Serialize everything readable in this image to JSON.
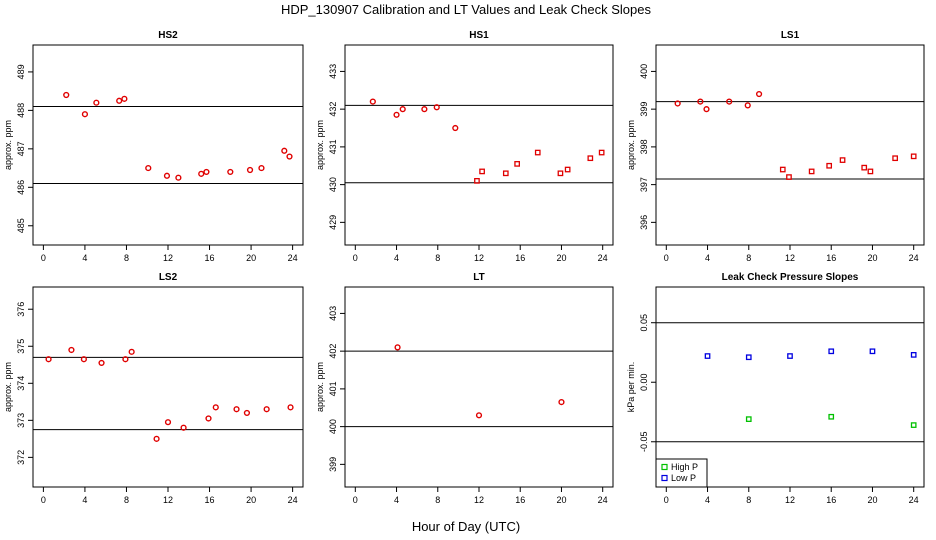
{
  "figure": {
    "title": "HDP_130907  Calibration and LT Values and Leak Check Slopes",
    "xlabel": "Hour of Day (UTC)"
  },
  "colors": {
    "red": "#e00000",
    "green": "#00c000",
    "blue": "#0000e0"
  },
  "chart_data": [
    {
      "type": "scatter",
      "title": "HS2",
      "ylabel": "approx. ppm",
      "xlim": [
        -1,
        25
      ],
      "ylim": [
        484.5,
        489.7
      ],
      "xticks": [
        0,
        4,
        8,
        12,
        16,
        20,
        24
      ],
      "yticks": [
        485,
        486,
        487,
        488,
        489
      ],
      "hlines": [
        488.1,
        486.1
      ],
      "series": [
        {
          "marker": "circle",
          "color": "#e00000",
          "x": [
            2.2,
            4.0,
            5.1,
            7.3,
            7.8,
            10.1,
            11.9,
            13.0,
            15.2,
            15.7,
            18.0,
            19.9,
            21.0,
            23.2,
            23.7
          ],
          "y": [
            488.4,
            487.9,
            488.2,
            488.25,
            488.3,
            486.5,
            486.3,
            486.25,
            486.35,
            486.4,
            486.4,
            486.45,
            486.5,
            486.95,
            486.8
          ]
        }
      ]
    },
    {
      "type": "scatter",
      "title": "HS1",
      "ylabel": "approx. ppm",
      "xlim": [
        -1,
        25
      ],
      "ylim": [
        428.4,
        433.7
      ],
      "xticks": [
        0,
        4,
        8,
        12,
        16,
        20,
        24
      ],
      "yticks": [
        429,
        430,
        431,
        432,
        433
      ],
      "hlines": [
        432.1,
        430.05
      ],
      "series": [
        {
          "marker": "circle",
          "color": "#e00000",
          "x": [
            1.7,
            4.0,
            4.6,
            6.7,
            7.9,
            9.7
          ],
          "y": [
            432.2,
            431.85,
            432.0,
            432.0,
            432.05,
            431.5
          ]
        },
        {
          "marker": "square",
          "color": "#e00000",
          "x": [
            11.8,
            12.3,
            14.6,
            15.7,
            17.7,
            19.9,
            20.6,
            22.8,
            23.9
          ],
          "y": [
            430.1,
            430.35,
            430.3,
            430.55,
            430.85,
            430.3,
            430.4,
            430.7,
            430.85
          ]
        }
      ]
    },
    {
      "type": "scatter",
      "title": "LS1",
      "ylabel": "approx. ppm",
      "xlim": [
        -1,
        25
      ],
      "ylim": [
        395.4,
        400.7
      ],
      "xticks": [
        0,
        4,
        8,
        12,
        16,
        20,
        24
      ],
      "yticks": [
        396,
        397,
        398,
        399,
        400
      ],
      "hlines": [
        399.2,
        397.15
      ],
      "series": [
        {
          "marker": "circle",
          "color": "#e00000",
          "x": [
            1.1,
            3.3,
            3.9,
            6.1,
            7.9,
            9.0
          ],
          "y": [
            399.15,
            399.2,
            399.0,
            399.2,
            399.1,
            399.4
          ]
        },
        {
          "marker": "square",
          "color": "#e00000",
          "x": [
            11.3,
            11.9,
            14.1,
            15.8,
            17.1,
            19.2,
            19.8,
            22.2,
            24.0
          ],
          "y": [
            397.4,
            397.2,
            397.35,
            397.5,
            397.65,
            397.45,
            397.35,
            397.7,
            397.75
          ]
        }
      ]
    },
    {
      "type": "scatter",
      "title": "LS2",
      "ylabel": "approx. ppm",
      "xlim": [
        -1,
        25
      ],
      "ylim": [
        371.2,
        376.6
      ],
      "xticks": [
        0,
        4,
        8,
        12,
        16,
        20,
        24
      ],
      "yticks": [
        372,
        373,
        374,
        375,
        376
      ],
      "hlines": [
        374.7,
        372.75
      ],
      "series": [
        {
          "marker": "circle",
          "color": "#e00000",
          "x": [
            0.5,
            2.7,
            3.9,
            5.6,
            7.9,
            8.5,
            10.9,
            12.0,
            13.5,
            15.9,
            16.6,
            18.6,
            19.6,
            21.5,
            23.8
          ],
          "y": [
            374.65,
            374.9,
            374.65,
            374.55,
            374.65,
            374.85,
            372.5,
            372.95,
            372.8,
            373.05,
            373.35,
            373.3,
            373.2,
            373.3,
            373.35
          ]
        }
      ]
    },
    {
      "type": "scatter",
      "title": "LT",
      "ylabel": "approx. ppm",
      "xlim": [
        -1,
        25
      ],
      "ylim": [
        398.4,
        403.7
      ],
      "xticks": [
        0,
        4,
        8,
        12,
        16,
        20,
        24
      ],
      "yticks": [
        399,
        400,
        401,
        402,
        403
      ],
      "hlines": [
        402.0,
        400.0
      ],
      "series": [
        {
          "marker": "circle",
          "color": "#e00000",
          "x": [
            4.1,
            12.0,
            20.0
          ],
          "y": [
            402.1,
            400.3,
            400.65
          ]
        }
      ]
    },
    {
      "type": "scatter",
      "title": "Leak Check Pressure Slopes",
      "ylabel": "kPa per min.",
      "xlim": [
        -1,
        25
      ],
      "ylim": [
        -0.088,
        0.08
      ],
      "xticks": [
        0,
        4,
        8,
        12,
        16,
        20,
        24
      ],
      "yticks": [
        -0.05,
        0.0,
        0.05
      ],
      "ytick_labels": [
        "-0.05",
        "0.00",
        "0.05"
      ],
      "hlines": [
        0.05,
        -0.05
      ],
      "legend": "bottom-left",
      "series": [
        {
          "name": "High P",
          "marker": "square",
          "color": "#00c000",
          "x": [
            8.0,
            16.0,
            24.0
          ],
          "y": [
            -0.031,
            -0.029,
            -0.036
          ]
        },
        {
          "name": "Low P",
          "marker": "square",
          "color": "#0000e0",
          "x": [
            4.0,
            8.0,
            12.0,
            16.0,
            20.0,
            24.0
          ],
          "y": [
            0.022,
            0.021,
            0.022,
            0.026,
            0.026,
            0.023
          ]
        }
      ]
    }
  ]
}
